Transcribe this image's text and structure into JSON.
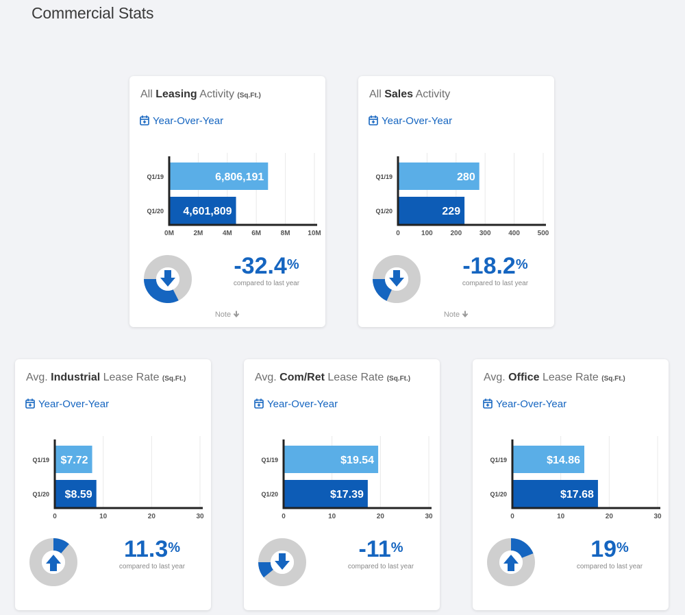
{
  "page": {
    "title": "Commercial Stats"
  },
  "colors": {
    "accent": "#1565c0",
    "bar_q119": "#5aaee7",
    "bar_q120": "#0d5cb6",
    "donut_track": "#cfcfcf"
  },
  "cards": [
    {
      "title_pre": "All ",
      "title_bold": "Leasing",
      "title_post": " Activity ",
      "title_unit": "(Sq.Ft.)",
      "yoy_label": "Year-Over-Year",
      "pct_value": "-32.4",
      "pct_symbol": "%",
      "pct_fraction": 0.324,
      "direction": "down",
      "compare_label": "compared to last year",
      "note_label": "Note"
    },
    {
      "title_pre": "All ",
      "title_bold": "Sales",
      "title_post": " Activity",
      "title_unit": "",
      "yoy_label": "Year-Over-Year",
      "pct_value": "-18.2",
      "pct_symbol": "%",
      "pct_fraction": 0.182,
      "direction": "down",
      "compare_label": "compared to last year",
      "note_label": "Note"
    },
    {
      "title_pre": "Avg. ",
      "title_bold": "Industrial",
      "title_post": " Lease Rate ",
      "title_unit": "(Sq.Ft.)",
      "yoy_label": "Year-Over-Year",
      "pct_value": "11.3",
      "pct_symbol": "%",
      "pct_fraction": 0.113,
      "direction": "up",
      "compare_label": "compared to last year"
    },
    {
      "title_pre": "Avg. ",
      "title_bold": "Com/Ret",
      "title_post": " Lease Rate ",
      "title_unit": "(Sq.Ft.)",
      "yoy_label": "Year-Over-Year",
      "pct_value": "-11",
      "pct_symbol": "%",
      "pct_fraction": 0.11,
      "direction": "down",
      "compare_label": "compared to last year"
    },
    {
      "title_pre": "Avg. ",
      "title_bold": "Office",
      "title_post": " Lease Rate ",
      "title_unit": "(Sq.Ft.)",
      "yoy_label": "Year-Over-Year",
      "pct_value": "19",
      "pct_symbol": "%",
      "pct_fraction": 0.19,
      "direction": "up",
      "compare_label": "compared to last year"
    }
  ],
  "chart_data": [
    {
      "type": "bar",
      "orientation": "horizontal",
      "categories": [
        "Q1/19",
        "Q1/20"
      ],
      "values": [
        6806191,
        4601809
      ],
      "value_labels": [
        "6,806,191",
        "4,601,809"
      ],
      "xlim": [
        0,
        10000000
      ],
      "xticks": [
        0,
        2000000,
        4000000,
        6000000,
        8000000,
        10000000
      ],
      "xtick_labels": [
        "0M",
        "2M",
        "4M",
        "6M",
        "8M",
        "10M"
      ],
      "grid": true
    },
    {
      "type": "bar",
      "orientation": "horizontal",
      "categories": [
        "Q1/19",
        "Q1/20"
      ],
      "values": [
        280,
        229
      ],
      "value_labels": [
        "280",
        "229"
      ],
      "xlim": [
        0,
        500
      ],
      "xticks": [
        0,
        100,
        200,
        300,
        400,
        500
      ],
      "xtick_labels": [
        "0",
        "100",
        "200",
        "300",
        "400",
        "500"
      ],
      "grid": true
    },
    {
      "type": "bar",
      "orientation": "horizontal",
      "categories": [
        "Q1/19",
        "Q1/20"
      ],
      "values": [
        7.72,
        8.59
      ],
      "value_labels": [
        "$7.72",
        "$8.59"
      ],
      "xlim": [
        0,
        30
      ],
      "xticks": [
        0,
        10,
        20,
        30
      ],
      "xtick_labels": [
        "0",
        "10",
        "20",
        "30"
      ],
      "grid": true
    },
    {
      "type": "bar",
      "orientation": "horizontal",
      "categories": [
        "Q1/19",
        "Q1/20"
      ],
      "values": [
        19.54,
        17.39
      ],
      "value_labels": [
        "$19.54",
        "$17.39"
      ],
      "xlim": [
        0,
        30
      ],
      "xticks": [
        0,
        10,
        20,
        30
      ],
      "xtick_labels": [
        "0",
        "10",
        "20",
        "30"
      ],
      "grid": true
    },
    {
      "type": "bar",
      "orientation": "horizontal",
      "categories": [
        "Q1/19",
        "Q1/20"
      ],
      "values": [
        14.86,
        17.68
      ],
      "value_labels": [
        "$14.86",
        "$17.68"
      ],
      "xlim": [
        0,
        30
      ],
      "xticks": [
        0,
        10,
        20,
        30
      ],
      "xtick_labels": [
        "0",
        "10",
        "20",
        "30"
      ],
      "grid": true
    }
  ]
}
